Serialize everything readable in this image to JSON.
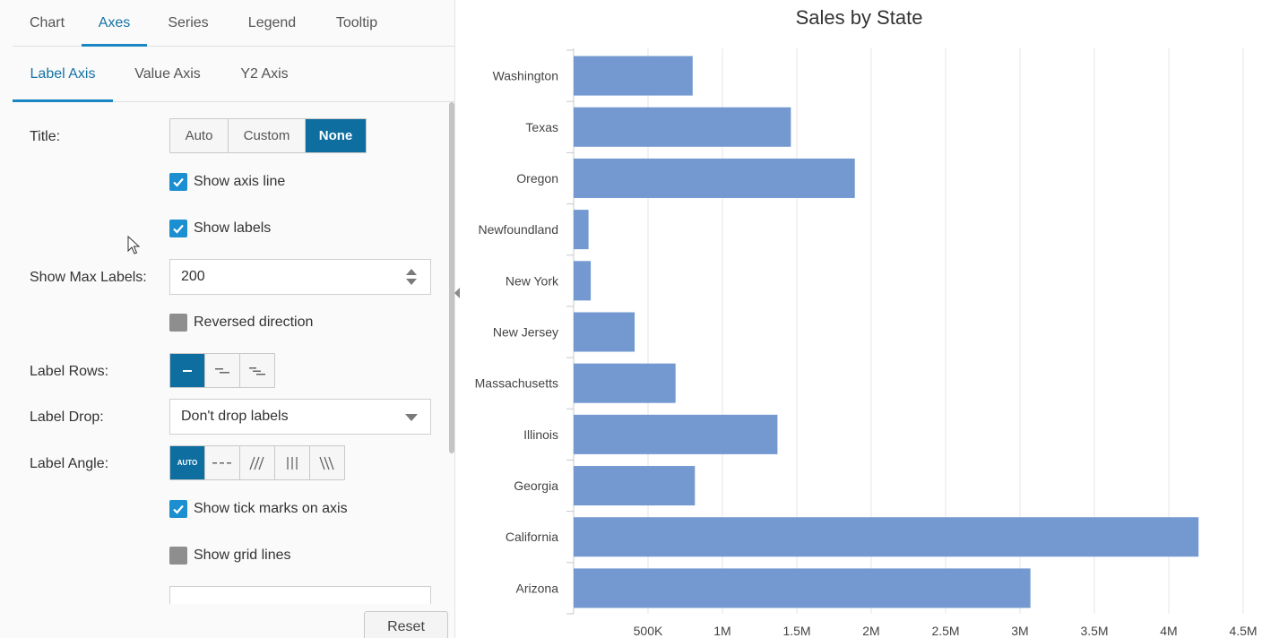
{
  "panel": {
    "main_tabs": [
      {
        "label": "Chart",
        "active": false
      },
      {
        "label": "Axes",
        "active": true
      },
      {
        "label": "Series",
        "active": false
      },
      {
        "label": "Legend",
        "active": false
      },
      {
        "label": "Tooltip",
        "active": false
      }
    ],
    "sub_tabs": [
      {
        "label": "Label Axis",
        "active": true
      },
      {
        "label": "Value Axis",
        "active": false
      },
      {
        "label": "Y2 Axis",
        "active": false
      }
    ],
    "title_label": "Title:",
    "title_options": [
      "Auto",
      "Custom",
      "None"
    ],
    "title_selected": "None",
    "show_axis_line": {
      "label": "Show axis line",
      "checked": true
    },
    "show_labels": {
      "label": "Show labels",
      "checked": true
    },
    "max_labels_label": "Show Max Labels:",
    "max_labels_value": "200",
    "reversed": {
      "label": "Reversed direction",
      "checked": false
    },
    "label_rows_label": "Label Rows:",
    "label_rows_selected": "1",
    "label_drop_label": "Label Drop:",
    "label_drop_value": "Don't drop labels",
    "label_angle_label": "Label Angle:",
    "label_angle_auto": "AUTO",
    "label_angle_selected": "auto",
    "tick_marks": {
      "label": "Show tick marks on axis",
      "checked": true
    },
    "grid_lines": {
      "label": "Show grid lines",
      "checked": false
    },
    "reset_label": "Reset"
  },
  "colors": {
    "accent": "#1b86c4",
    "active_fill": "#0f6ea0",
    "checkbox_on": "#1c8fd1",
    "bar": "#7399d0"
  },
  "chart_data": {
    "type": "bar",
    "orientation": "horizontal",
    "title": "Sales by State",
    "categories": [
      "Washington",
      "Texas",
      "Oregon",
      "Newfoundland",
      "New York",
      "New Jersey",
      "Massachusetts",
      "Illinois",
      "Georgia",
      "California",
      "Arizona"
    ],
    "values": [
      800000,
      1460000,
      1890000,
      100000,
      115000,
      410000,
      685000,
      1370000,
      815000,
      4200000,
      3070000
    ],
    "xticks": [
      "500K",
      "1M",
      "1.5M",
      "2M",
      "2.5M",
      "3M",
      "3.5M",
      "4M",
      "4.5M"
    ],
    "xlim": [
      0,
      4500000
    ],
    "grid": true
  }
}
